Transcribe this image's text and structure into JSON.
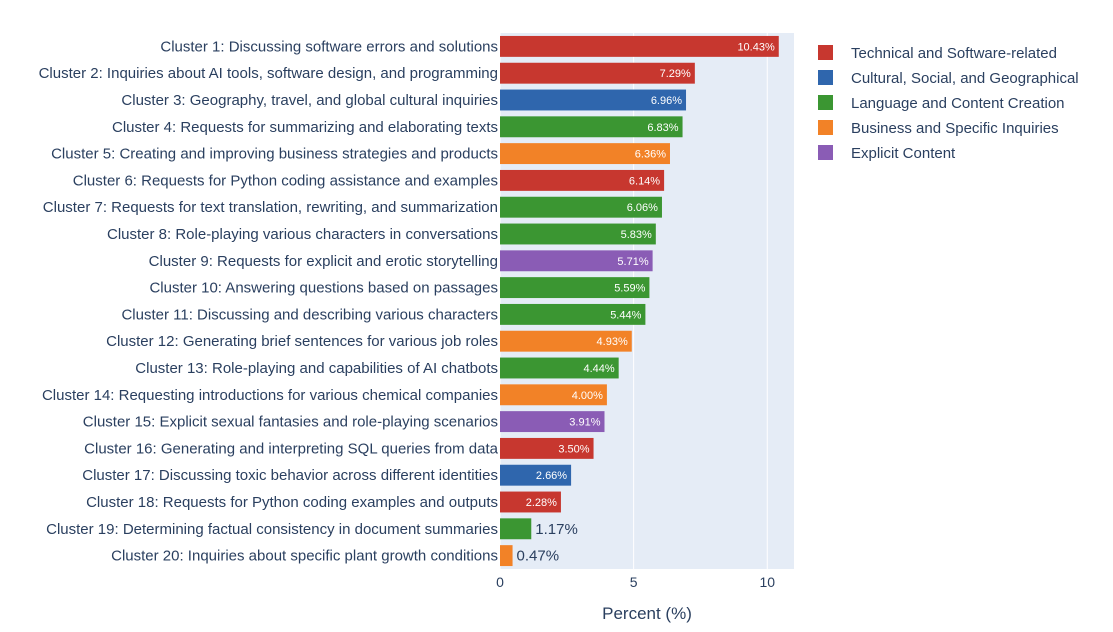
{
  "chart_data": {
    "type": "bar",
    "orientation": "horizontal",
    "xlabel": "Percent (%)",
    "ylabel": "",
    "xlim": [
      0,
      11
    ],
    "xticks": [
      0,
      5,
      10
    ],
    "grid": true,
    "legend_position": "top-right",
    "categories": [
      "Cluster 1: Discussing software errors and solutions",
      "Cluster 2: Inquiries about AI tools, software design, and programming",
      "Cluster 3: Geography, travel, and global cultural inquiries",
      "Cluster 4: Requests for summarizing and elaborating texts",
      "Cluster 5: Creating and improving business strategies and products",
      "Cluster 6: Requests for Python coding assistance and examples",
      "Cluster 7: Requests for text translation, rewriting, and summarization",
      "Cluster 8: Role-playing various characters in conversations",
      "Cluster 9: Requests for explicit and erotic storytelling",
      "Cluster 10: Answering questions based on passages",
      "Cluster 11: Discussing and describing various characters",
      "Cluster 12: Generating brief sentences for various job roles",
      "Cluster 13: Role-playing and capabilities of AI chatbots",
      "Cluster 14: Requesting introductions for various chemical companies",
      "Cluster 15: Explicit sexual fantasies and role-playing scenarios",
      "Cluster 16: Generating and interpreting SQL queries from data",
      "Cluster 17: Discussing toxic behavior across different identities",
      "Cluster 18: Requests for Python coding examples and outputs",
      "Cluster 19: Determining factual consistency in document summaries",
      "Cluster 20: Inquiries about specific plant growth conditions"
    ],
    "values": [
      10.43,
      7.29,
      6.96,
      6.83,
      6.36,
      6.14,
      6.06,
      5.83,
      5.71,
      5.59,
      5.44,
      4.93,
      4.44,
      4.0,
      3.91,
      3.5,
      2.66,
      2.28,
      1.17,
      0.47
    ],
    "value_labels": [
      "10.43%",
      "7.29%",
      "6.96%",
      "6.83%",
      "6.36%",
      "6.14%",
      "6.06%",
      "5.83%",
      "5.71%",
      "5.59%",
      "5.44%",
      "4.93%",
      "4.44%",
      "4.00%",
      "3.91%",
      "3.50%",
      "2.66%",
      "2.28%",
      "1.17%",
      "0.47%"
    ],
    "groups": [
      0,
      0,
      1,
      2,
      3,
      0,
      2,
      2,
      4,
      2,
      2,
      3,
      2,
      3,
      4,
      0,
      1,
      0,
      2,
      3
    ],
    "legend": [
      {
        "name": "Technical and Software-related",
        "color": "#c7372f"
      },
      {
        "name": "Cultural, Social, and Geographical",
        "color": "#2f66ad"
      },
      {
        "name": "Language and Content Creation",
        "color": "#3b9632"
      },
      {
        "name": "Business and Specific Inquiries",
        "color": "#f28227"
      },
      {
        "name": "Explicit Content",
        "color": "#8a5cb5"
      }
    ],
    "plot_background": "#e5ecf6"
  }
}
